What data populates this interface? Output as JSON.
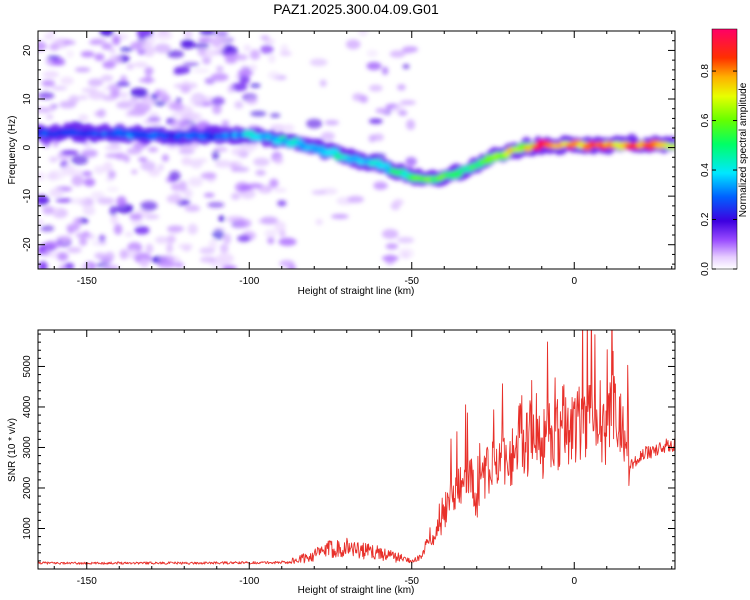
{
  "figure": {
    "title": "PAZ1.2025.300.04.09.G01"
  },
  "chart_data": [
    {
      "type": "heatmap",
      "title": "PAZ1.2025.300.04.09.G01",
      "xlabel": "Height of straight line (km)",
      "ylabel": "Frequency (Hz)",
      "xlim": [
        -165,
        31
      ],
      "ylim": [
        -25,
        24
      ],
      "xticks": [
        -150,
        -100,
        -50,
        0
      ],
      "yticks": [
        -20,
        -10,
        0,
        10,
        20
      ],
      "ridge_frequency": {
        "x": [
          -165,
          -150,
          -140,
          -130,
          -120,
          -110,
          -100,
          -90,
          -80,
          -70,
          -60,
          -55,
          -50,
          -45,
          -40,
          -35,
          -30,
          -25,
          -20,
          -15,
          -10,
          -5,
          0,
          10,
          20,
          31
        ],
        "y": [
          3,
          3,
          3,
          2.5,
          2.5,
          2.5,
          2.5,
          1.5,
          0,
          -2,
          -3.5,
          -5,
          -6,
          -6.5,
          -6,
          -5,
          -3.5,
          -2,
          -1,
          0,
          0.5,
          0.5,
          0.5,
          0.5,
          0.7,
          0.5
        ],
        "amplitude": [
          0.3,
          0.3,
          0.35,
          0.3,
          0.3,
          0.3,
          0.4,
          0.45,
          0.45,
          0.45,
          0.45,
          0.5,
          0.55,
          0.65,
          0.6,
          0.55,
          0.55,
          0.6,
          0.7,
          0.8,
          0.95,
          0.9,
          0.95,
          0.9,
          0.85,
          0.7
        ]
      },
      "colorbar": {
        "label": "Normalized spectral amplitude",
        "range": [
          0,
          0.97
        ],
        "ticks": [
          "0.0",
          "0.2",
          "0.4",
          "0.6",
          "0.8"
        ]
      }
    },
    {
      "type": "line",
      "xlabel": "Height of straight line (km)",
      "ylabel": "SNR (10 * v/v)",
      "xlim": [
        -165,
        31
      ],
      "ylim": [
        0,
        5900
      ],
      "xticks": [
        -150,
        -100,
        -50,
        0
      ],
      "yticks": [
        1000,
        2000,
        3000,
        4000,
        5000
      ],
      "line_color": "#e8302a",
      "series": [
        {
          "name": "SNR",
          "x": [
            -165,
            -150,
            -140,
            -130,
            -120,
            -110,
            -100,
            -90,
            -85,
            -80,
            -75,
            -70,
            -65,
            -60,
            -55,
            -50,
            -47,
            -45,
            -42,
            -40,
            -38,
            -35,
            -32,
            -30,
            -28,
            -25,
            -22,
            -20,
            -17,
            -15,
            -12,
            -10,
            -8,
            -5,
            -2,
            0,
            3,
            5,
            8,
            10,
            12,
            14,
            16,
            17,
            18,
            20,
            25,
            31
          ],
          "y": [
            150,
            140,
            150,
            150,
            145,
            150,
            155,
            160,
            220,
            350,
            500,
            550,
            450,
            400,
            300,
            200,
            300,
            700,
            900,
            1300,
            1800,
            2000,
            2500,
            1500,
            2300,
            2500,
            2900,
            2700,
            3300,
            3000,
            3600,
            2900,
            3500,
            3300,
            3400,
            3600,
            3700,
            3900,
            3300,
            3600,
            4000,
            3500,
            3700,
            2600,
            2600,
            2800,
            2950,
            3100
          ]
        }
      ]
    }
  ]
}
